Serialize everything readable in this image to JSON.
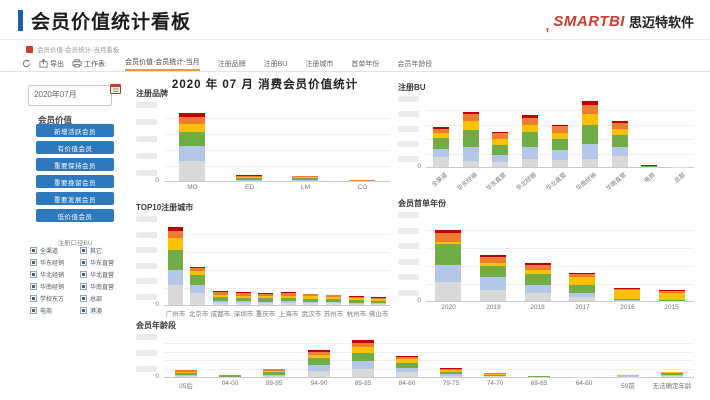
{
  "header": {
    "title": "会员价值统计看板",
    "logo": {
      "brand": "SMARTBI",
      "company": "思迈特软件"
    }
  },
  "breadcrumb": {
    "text": "会员价值-会员统计-当月看板"
  },
  "toolbar": {
    "export_label": "导出",
    "worksheet_label": "工作表:",
    "tabs": [
      {
        "label": "会员价值-会员统计-当月",
        "active": true
      },
      {
        "label": "注册品牌",
        "active": false
      },
      {
        "label": "注册BU",
        "active": false
      },
      {
        "label": "注册城市",
        "active": false
      },
      {
        "label": "首单年份",
        "active": false
      },
      {
        "label": "会员年龄段",
        "active": false
      }
    ]
  },
  "sidebar": {
    "date_filter": {
      "value": "2020年07月"
    },
    "member_value": {
      "label": "会员价值",
      "buttons": [
        "新增活跃会员",
        "有价值会员",
        "重要保持会员",
        "重要挽留会员",
        "重要发展会员",
        "低价值会员"
      ]
    },
    "bu_filter": {
      "label": "注册口径BU",
      "options": [
        [
          "全渠道",
          "其它"
        ],
        [
          "华东经销",
          "华东直营"
        ],
        [
          "华北经销",
          "华北直营"
        ],
        [
          "华南经销",
          "华南直营"
        ],
        [
          "学校东方",
          "总部"
        ],
        [
          "电商",
          "港澳"
        ]
      ]
    }
  },
  "main": {
    "title": "2020 年 07 月 消费会员价值统计"
  },
  "axis": {
    "zero_label": "0"
  },
  "colors": {
    "stack": [
      "#d9d9d9",
      "#b4c7e7",
      "#70ad47",
      "#ffc000",
      "#ed7d31",
      "#c00000"
    ],
    "accent_blue": "#2e79bd",
    "tab_active_underline": "#e49b3c",
    "brand_red": "#d23a2e",
    "header_bar_blue": "#1e5fae"
  },
  "chart_data": [
    {
      "id": "registered-brand",
      "type": "bar",
      "stacked": true,
      "title": "注册品牌",
      "categories": [
        "MO",
        "ED",
        "LM",
        "CG"
      ],
      "ylim": [
        0,
        90
      ],
      "legend": false,
      "grid": true,
      "series": [
        {
          "name": "segment-gray",
          "values": [
            22,
            0.6,
            0.5,
            0.15
          ]
        },
        {
          "name": "segment-blue",
          "values": [
            17,
            0.6,
            0.5,
            0.1
          ]
        },
        {
          "name": "segment-green",
          "values": [
            16,
            2.2,
            2.0,
            0.2
          ]
        },
        {
          "name": "segment-yellow",
          "values": [
            9,
            1.6,
            1.4,
            0.1
          ]
        },
        {
          "name": "segment-orange",
          "values": [
            8,
            1.2,
            1.0,
            0.1
          ]
        },
        {
          "name": "segment-red",
          "values": [
            4,
            0.4,
            0.3,
            0.05
          ]
        }
      ]
    },
    {
      "id": "registered-bu",
      "type": "bar",
      "stacked": true,
      "title": "注册BU",
      "categories": [
        "全渠道",
        "华东经销",
        "华东直营",
        "华北经销",
        "华北直营",
        "华南经销",
        "华南直营",
        "电商",
        "总部"
      ],
      "ylim": [
        0,
        60
      ],
      "legend": false,
      "grid": true,
      "series": [
        {
          "name": "segment-gray",
          "values": [
            8,
            5,
            4,
            7,
            6,
            7,
            9,
            0.2,
            0.1
          ]
        },
        {
          "name": "segment-blue",
          "values": [
            7,
            12,
            6,
            10,
            8,
            12,
            8,
            0.2,
            0.05
          ]
        },
        {
          "name": "segment-green",
          "values": [
            9,
            14,
            8,
            12,
            9,
            16,
            10,
            0.3,
            0.05
          ]
        },
        {
          "name": "segment-yellow",
          "values": [
            4,
            7,
            5,
            6,
            5,
            9,
            5,
            0.2,
            0.05
          ]
        },
        {
          "name": "segment-orange",
          "values": [
            4,
            6,
            5,
            6,
            6,
            8,
            5,
            0.3,
            0.05
          ]
        },
        {
          "name": "segment-red",
          "values": [
            1,
            2,
            1,
            2,
            1,
            3,
            1,
            0.3,
            0.02
          ]
        }
      ]
    },
    {
      "id": "top10-cities",
      "type": "bar",
      "stacked": true,
      "title": "TOP10注册城市",
      "categories": [
        "广州市",
        "北京市",
        "成都市",
        "深圳市",
        "重庆市",
        "上海市",
        "武汉市",
        "苏州市",
        "杭州市",
        "佛山市"
      ],
      "ylim": [
        0,
        90
      ],
      "legend": false,
      "grid": true,
      "series": [
        {
          "name": "segment-gray",
          "values": [
            20,
            12,
            2.5,
            2.2,
            2.0,
            2.2,
            2.0,
            1.8,
            1.5,
            1.3
          ]
        },
        {
          "name": "segment-blue",
          "values": [
            15,
            8,
            1.5,
            1.4,
            1.3,
            1.4,
            1.2,
            1.0,
            0.9,
            0.8
          ]
        },
        {
          "name": "segment-green",
          "values": [
            20,
            10,
            4.0,
            3.6,
            3.4,
            3.6,
            3.3,
            3.0,
            2.6,
            2.4
          ]
        },
        {
          "name": "segment-yellow",
          "values": [
            12,
            4,
            2.5,
            2.3,
            2.2,
            2.3,
            2.1,
            1.9,
            1.7,
            1.5
          ]
        },
        {
          "name": "segment-orange",
          "values": [
            7,
            3,
            2.5,
            2.3,
            2.2,
            2.3,
            2.1,
            1.9,
            1.7,
            1.5
          ]
        },
        {
          "name": "segment-red",
          "values": [
            4,
            1,
            1.0,
            0.8,
            0.7,
            0.8,
            0.7,
            0.6,
            0.5,
            0.4
          ]
        }
      ]
    },
    {
      "id": "first-order-year",
      "type": "bar",
      "stacked": true,
      "title": "会员首单年份",
      "categories": [
        "2020",
        "2019",
        "2018",
        "2017",
        "2016",
        "2015"
      ],
      "ylim": [
        0,
        95
      ],
      "legend": false,
      "grid": true,
      "series": [
        {
          "name": "segment-gray",
          "values": [
            20,
            12,
            8,
            4,
            0.5,
            0.2
          ]
        },
        {
          "name": "segment-blue",
          "values": [
            18,
            13,
            9,
            5,
            0.5,
            0.2
          ]
        },
        {
          "name": "segment-green",
          "values": [
            22,
            12,
            12,
            8,
            1.2,
            0.4
          ]
        },
        {
          "name": "segment-yellow",
          "values": [
            2,
            3,
            4,
            8,
            9,
            8
          ]
        },
        {
          "name": "segment-orange",
          "values": [
            10,
            7,
            5,
            4,
            2,
            2
          ]
        },
        {
          "name": "segment-red",
          "values": [
            3,
            2,
            2,
            1,
            0.3,
            0.4
          ]
        }
      ]
    },
    {
      "id": "member-age-band",
      "type": "bar",
      "stacked": true,
      "title": "会员年龄段",
      "categories": [
        "05后",
        "04-00",
        "99-95",
        "94-90",
        "89-85",
        "84-80",
        "79-75",
        "74-70",
        "69-65",
        "64-60",
        "59前",
        "无法确定年龄"
      ],
      "ylim": [
        0,
        45
      ],
      "legend": false,
      "grid": true,
      "series": [
        {
          "name": "segment-gray",
          "values": [
            1.0,
            0.3,
            1.5,
            6,
            8,
            5,
            1.5,
            0.8,
            0.3,
            0.1,
            0.4,
            1.0
          ]
        },
        {
          "name": "segment-blue",
          "values": [
            0.8,
            0.2,
            1.0,
            6,
            8,
            4,
            1.2,
            0.6,
            0.2,
            0.1,
            0.3,
            0.8
          ]
        },
        {
          "name": "segment-green",
          "values": [
            2.0,
            0.5,
            2.5,
            7,
            9,
            5,
            2.5,
            1.0,
            0.4,
            0.15,
            0.5,
            1.8
          ]
        },
        {
          "name": "segment-yellow",
          "values": [
            1.5,
            0.4,
            1.5,
            4,
            6,
            4,
            1.8,
            0.8,
            0.3,
            0.1,
            0.4,
            1.0
          ]
        },
        {
          "name": "segment-orange",
          "values": [
            1.5,
            0.4,
            1.3,
            3,
            4,
            3,
            1.5,
            0.6,
            0.25,
            0.08,
            0.4,
            0.4
          ]
        },
        {
          "name": "segment-red",
          "values": [
            0.3,
            0.1,
            0.3,
            2,
            3,
            1,
            0.4,
            0.2,
            0.1,
            0.03,
            0.1,
            0.1
          ]
        }
      ]
    }
  ]
}
